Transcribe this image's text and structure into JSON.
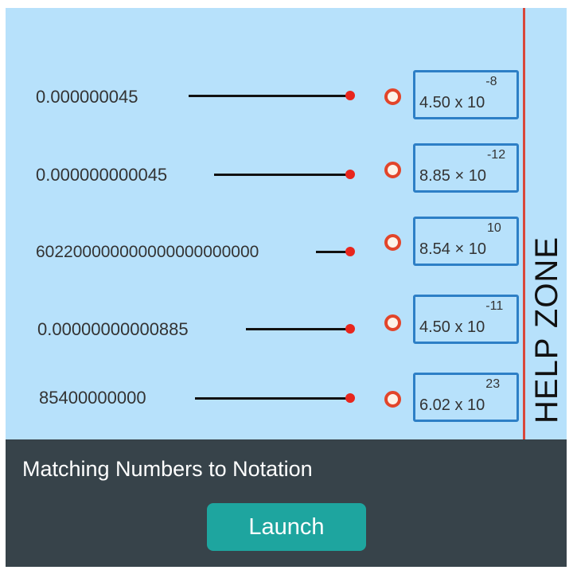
{
  "rows": [
    {
      "number": "0.000000045"
    },
    {
      "number": "0.000000000045"
    },
    {
      "number": "602200000000000000000000"
    },
    {
      "number": "0.00000000000885"
    },
    {
      "number": "85400000000"
    }
  ],
  "targets": [
    {
      "mantissa": "4.50 x 10",
      "exponent": "-8"
    },
    {
      "mantissa": "8.85 × 10",
      "exponent": "-12"
    },
    {
      "mantissa": "8.54 × 10",
      "exponent": "10"
    },
    {
      "mantissa": "4.50 x 10",
      "exponent": "-11"
    },
    {
      "mantissa": "6.02 x 10",
      "exponent": "23"
    }
  ],
  "help_zone": "HELP ZONE",
  "panel": {
    "title": "Matching Numbers to Notation",
    "launch_label": "Launch"
  },
  "colors": {
    "background": "#b7e1fb",
    "accent": "#1ea59f",
    "panel": "#37434a",
    "dot": "#e8261d",
    "box_border": "#2d7fc6"
  }
}
